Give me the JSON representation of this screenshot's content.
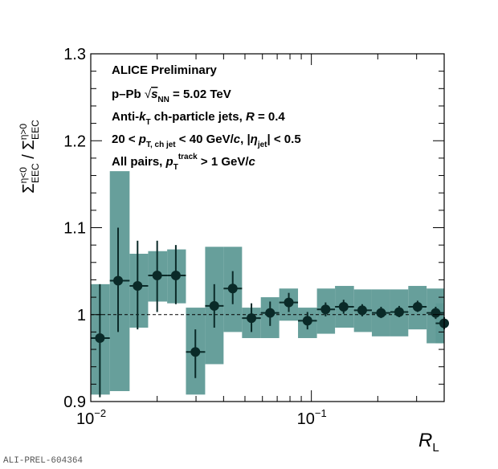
{
  "chart_data": {
    "type": "scatter",
    "title": "",
    "xlabel": "R",
    "xlabel_sub": "L",
    "ylabel_parts": {
      "num_symbol": "Σ",
      "num_sup": "η<0",
      "num_sub": "EEC",
      "separator": " / ",
      "den_symbol": "Σ",
      "den_sup": "η>0",
      "den_sub": "EEC"
    },
    "xscale": "log",
    "xlim": [
      0.01,
      0.4
    ],
    "ylim": [
      0.9,
      1.3
    ],
    "yticks": [
      0.9,
      1.0,
      1.1,
      1.2,
      1.3
    ],
    "ytick_labels": [
      "0.9",
      "1",
      "1.1",
      "1.2",
      "1.3"
    ],
    "xticks": [
      0.01,
      0.1
    ],
    "xtick_labels": [
      {
        "base": "10",
        "exp": "−2"
      },
      {
        "base": "10",
        "exp": "−1"
      }
    ],
    "reference_line": 1.0,
    "grid": false,
    "colors": {
      "syst_band": "#5f9a96",
      "marker": "#0a2a28",
      "axis": "#000000"
    },
    "annotations": [
      {
        "parts": [
          {
            "t": "ALICE Preliminary"
          }
        ]
      },
      {
        "parts": [
          {
            "t": "p–Pb "
          },
          {
            "t": "√",
            "sqrt": true
          },
          {
            "t": "s",
            "italic": true,
            "overline": true
          },
          {
            "t": "NN",
            "sub": true
          },
          {
            "t": " = 5.02 TeV"
          }
        ]
      },
      {
        "parts": [
          {
            "t": "Anti-"
          },
          {
            "t": "k",
            "italic": true
          },
          {
            "t": "T",
            "sub": true
          },
          {
            "t": " ch-particle jets,  "
          },
          {
            "t": "R",
            "italic": true
          },
          {
            "t": " = 0.4"
          }
        ]
      },
      {
        "parts": [
          {
            "t": "20 <  "
          },
          {
            "t": "p",
            "italic": true
          },
          {
            "t": "T, ch jet",
            "sub": true
          },
          {
            "t": " < 40 GeV/"
          },
          {
            "t": "c",
            "italic": true
          },
          {
            "t": ", |"
          },
          {
            "t": "η",
            "italic": true
          },
          {
            "t": "jet",
            "sub": true
          },
          {
            "t": "| < 0.5"
          }
        ]
      },
      {
        "parts": [
          {
            "t": "All pairs,  "
          },
          {
            "t": "p",
            "italic": true
          },
          {
            "t": "T",
            "sub": true
          },
          {
            "t": "track",
            "sup": true
          },
          {
            "t": " > 1 GeV/"
          },
          {
            "t": "c",
            "italic": true
          }
        ]
      }
    ],
    "series": [
      {
        "name": "ratio",
        "points": [
          {
            "x": 0.011,
            "xlo": 0.01,
            "xhi": 0.0122,
            "y": 0.973,
            "stat_lo": 0.905,
            "stat_hi": 1.035,
            "syst_lo": 0.908,
            "syst_hi": 1.035
          },
          {
            "x": 0.0133,
            "xlo": 0.0122,
            "xhi": 0.015,
            "y": 1.039,
            "stat_lo": 0.98,
            "stat_hi": 1.1,
            "syst_lo": 0.912,
            "syst_hi": 1.165
          },
          {
            "x": 0.0163,
            "xlo": 0.015,
            "xhi": 0.0182,
            "y": 1.033,
            "stat_lo": 0.983,
            "stat_hi": 1.085,
            "syst_lo": 0.985,
            "syst_hi": 1.07
          },
          {
            "x": 0.02,
            "xlo": 0.0182,
            "xhi": 0.0222,
            "y": 1.045,
            "stat_lo": 1.003,
            "stat_hi": 1.085,
            "syst_lo": 1.015,
            "syst_hi": 1.073
          },
          {
            "x": 0.0243,
            "xlo": 0.0222,
            "xhi": 0.027,
            "y": 1.045,
            "stat_lo": 1.012,
            "stat_hi": 1.08,
            "syst_lo": 1.013,
            "syst_hi": 1.075
          },
          {
            "x": 0.0298,
            "xlo": 0.027,
            "xhi": 0.033,
            "y": 0.957,
            "stat_lo": 0.927,
            "stat_hi": 0.983,
            "syst_lo": 0.908,
            "syst_hi": 1.008
          },
          {
            "x": 0.0363,
            "xlo": 0.033,
            "xhi": 0.04,
            "y": 1.01,
            "stat_lo": 0.985,
            "stat_hi": 1.035,
            "syst_lo": 0.943,
            "syst_hi": 1.078
          },
          {
            "x": 0.044,
            "xlo": 0.04,
            "xhi": 0.0485,
            "y": 1.03,
            "stat_lo": 1.012,
            "stat_hi": 1.05,
            "syst_lo": 0.98,
            "syst_hi": 1.078
          },
          {
            "x": 0.0535,
            "xlo": 0.0485,
            "xhi": 0.059,
            "y": 0.996,
            "stat_lo": 0.98,
            "stat_hi": 1.013,
            "syst_lo": 0.973,
            "syst_hi": 1.008
          },
          {
            "x": 0.065,
            "xlo": 0.059,
            "xhi": 0.0715,
            "y": 1.002,
            "stat_lo": 0.987,
            "stat_hi": 1.015,
            "syst_lo": 0.973,
            "syst_hi": 1.02
          },
          {
            "x": 0.079,
            "xlo": 0.0715,
            "xhi": 0.087,
            "y": 1.014,
            "stat_lo": 1.003,
            "stat_hi": 1.025,
            "syst_lo": 0.993,
            "syst_hi": 1.03
          },
          {
            "x": 0.096,
            "xlo": 0.087,
            "xhi": 0.106,
            "y": 0.993,
            "stat_lo": 0.983,
            "stat_hi": 1.003,
            "syst_lo": 0.973,
            "syst_hi": 1.008
          },
          {
            "x": 0.116,
            "xlo": 0.106,
            "xhi": 0.128,
            "y": 1.006,
            "stat_lo": 0.998,
            "stat_hi": 1.014,
            "syst_lo": 0.978,
            "syst_hi": 1.03
          },
          {
            "x": 0.14,
            "xlo": 0.128,
            "xhi": 0.156,
            "y": 1.009,
            "stat_lo": 1.001,
            "stat_hi": 1.017,
            "syst_lo": 0.985,
            "syst_hi": 1.033
          },
          {
            "x": 0.17,
            "xlo": 0.156,
            "xhi": 0.188,
            "y": 1.005,
            "stat_lo": 0.998,
            "stat_hi": 1.012,
            "syst_lo": 0.98,
            "syst_hi": 1.029
          },
          {
            "x": 0.207,
            "xlo": 0.188,
            "xhi": 0.228,
            "y": 1.002,
            "stat_lo": 0.996,
            "stat_hi": 1.009,
            "syst_lo": 0.975,
            "syst_hi": 1.029
          },
          {
            "x": 0.25,
            "xlo": 0.228,
            "xhi": 0.275,
            "y": 1.003,
            "stat_lo": 0.997,
            "stat_hi": 1.01,
            "syst_lo": 0.975,
            "syst_hi": 1.029
          },
          {
            "x": 0.303,
            "xlo": 0.275,
            "xhi": 0.333,
            "y": 1.009,
            "stat_lo": 1.003,
            "stat_hi": 1.016,
            "syst_lo": 0.983,
            "syst_hi": 1.033
          },
          {
            "x": 0.366,
            "xlo": 0.333,
            "xhi": 0.4,
            "y": 1.002,
            "stat_lo": 0.995,
            "stat_hi": 1.009,
            "syst_lo": 0.967,
            "syst_hi": 1.03
          },
          {
            "x": 0.4,
            "xlo": 0.366,
            "xhi": 0.4,
            "y": 0.99,
            "stat_lo": 0.983,
            "stat_hi": 0.997,
            "syst_lo": 0.967,
            "syst_hi": 1.013
          }
        ]
      }
    ]
  },
  "footer": {
    "id_label": "ALI-PREL-604364"
  }
}
